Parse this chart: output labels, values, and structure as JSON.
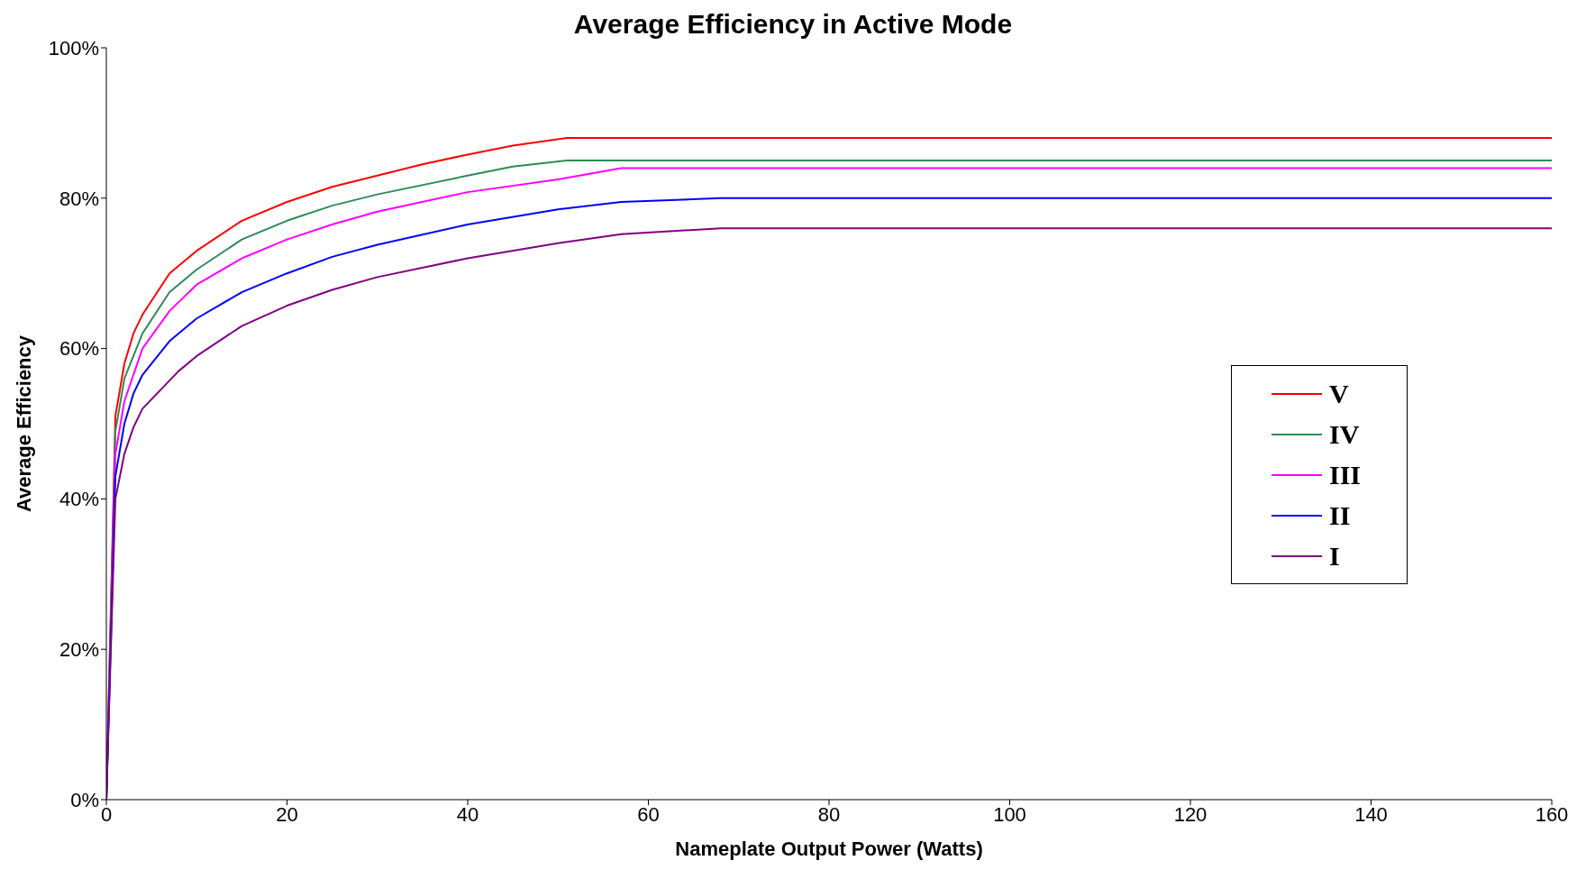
{
  "chart_data": {
    "type": "line",
    "title": "Average Efficiency in Active Mode",
    "xlabel": "Nameplate Output Power (Watts)",
    "ylabel": "Average Efficiency",
    "xlim": [
      0,
      160
    ],
    "xticks": [
      0,
      20,
      40,
      60,
      80,
      100,
      120,
      140,
      160
    ],
    "ylim": [
      0,
      100
    ],
    "yticks": [
      {
        "value": 0,
        "label": "0%"
      },
      {
        "value": 20,
        "label": "20%"
      },
      {
        "value": 40,
        "label": "40%"
      },
      {
        "value": 60,
        "label": "60%"
      },
      {
        "value": 80,
        "label": "80%"
      },
      {
        "value": 100,
        "label": "100%"
      }
    ],
    "grid": false,
    "legend": "right",
    "marker": "none",
    "line_style": "solid",
    "series": [
      {
        "name": "V",
        "color": "#ff0000",
        "x": [
          0,
          1,
          2,
          3,
          4,
          7,
          10,
          15,
          20,
          25,
          30,
          35,
          40,
          45,
          51,
          160
        ],
        "values": [
          0,
          51,
          58,
          62,
          64.5,
          70,
          73,
          77,
          79.5,
          81.5,
          83,
          84.5,
          85.8,
          87,
          88,
          88
        ]
      },
      {
        "name": "IV",
        "color": "#2e8b57",
        "x": [
          0,
          1,
          2,
          4,
          7,
          10,
          15,
          20,
          25,
          30,
          40,
          45,
          51,
          160
        ],
        "values": [
          0,
          49,
          56,
          62,
          67.5,
          70.5,
          74.5,
          77,
          79,
          80.5,
          83,
          84.2,
          85,
          85
        ]
      },
      {
        "name": "III",
        "color": "#ff00ff",
        "x": [
          0,
          1,
          2,
          4,
          7,
          10,
          15,
          20,
          25,
          30,
          40,
          50,
          57,
          160
        ],
        "values": [
          0,
          46,
          53,
          60,
          65,
          68.5,
          72,
          74.5,
          76.5,
          78.2,
          80.8,
          82.5,
          84,
          84
        ]
      },
      {
        "name": "II",
        "color": "#0000ff",
        "x": [
          0,
          1,
          2,
          3,
          4,
          7,
          10,
          15,
          20,
          25,
          30,
          40,
          50,
          57,
          68,
          160
        ],
        "values": [
          0,
          43,
          50,
          54,
          56.5,
          61,
          64,
          67.5,
          70,
          72.2,
          73.8,
          76.5,
          78.5,
          79.5,
          80,
          80
        ]
      },
      {
        "name": "I",
        "color": "#800080",
        "x": [
          0,
          1,
          2,
          3,
          4,
          8,
          10,
          15,
          20,
          25,
          30,
          40,
          50,
          57,
          68,
          160
        ],
        "values": [
          0,
          40,
          46,
          49.5,
          52,
          57,
          59,
          63,
          65.7,
          67.8,
          69.5,
          72,
          74,
          75.2,
          76,
          76
        ]
      }
    ]
  }
}
